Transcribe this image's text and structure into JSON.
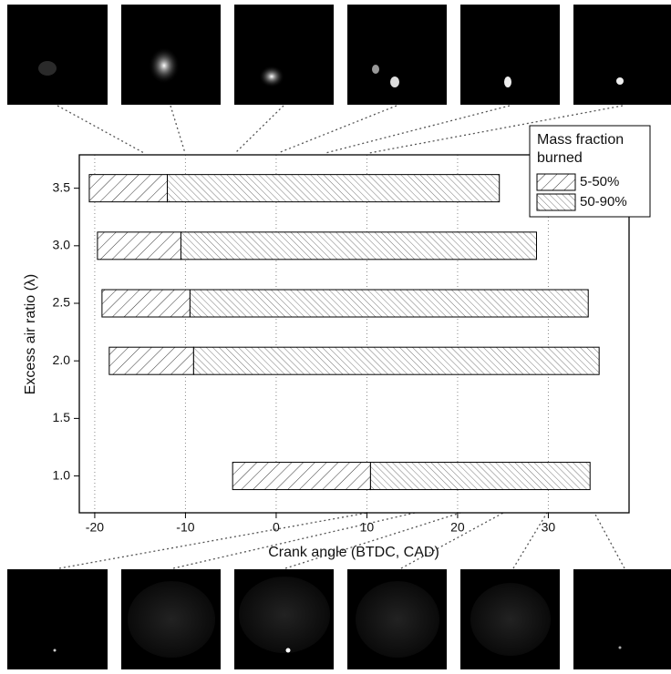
{
  "chart_data": {
    "type": "floating-barh",
    "xlabel": "Crank angle (BTDC, CAD)",
    "ylabel": "Excess air ratio (λ)",
    "legend_title": [
      "Mass fraction",
      "burned"
    ],
    "legend": "upper right",
    "y": [
      1.0,
      2.0,
      2.5,
      3.0,
      3.5
    ],
    "series": [
      {
        "name": "5-50%",
        "values": [
          [
            -4.8,
            10.4
          ],
          [
            -18.4,
            -9.1
          ],
          [
            -19.2,
            -9.5
          ],
          [
            -19.7,
            -10.5
          ],
          [
            -20.6,
            -12.0
          ]
        ]
      },
      {
        "name": "50-90%",
        "values": [
          [
            10.4,
            34.6
          ],
          [
            -9.1,
            35.6
          ],
          [
            -9.5,
            34.4
          ],
          [
            -10.5,
            28.7
          ],
          [
            -12.0,
            24.6
          ]
        ]
      }
    ],
    "xlim": [
      -21.7,
      38.9
    ],
    "xticks": [
      -20,
      -10,
      0,
      10,
      20,
      30
    ],
    "ylim": [
      0.68,
      3.79
    ],
    "yticks": [
      {
        "value": 1.0,
        "label": "1.0"
      },
      {
        "value": 1.5,
        "label": "1.5"
      },
      {
        "value": 2.0,
        "label": "2.0"
      },
      {
        "value": 2.5,
        "label": "2.5"
      },
      {
        "value": 3.0,
        "label": "3.0"
      },
      {
        "value": 3.5,
        "label": "3.5"
      }
    ],
    "grid": true
  }
}
